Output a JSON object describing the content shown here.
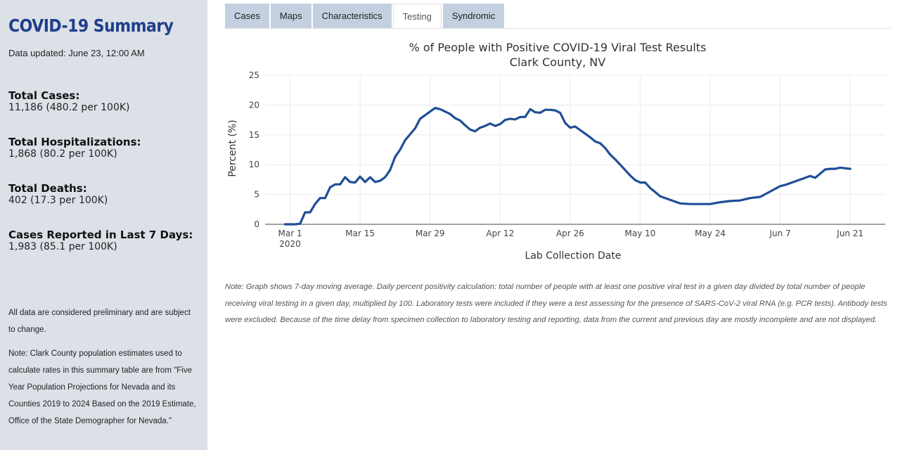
{
  "sidebar": {
    "title": "COVID-19 Summary",
    "updated": "Data updated: June 23, 12:00 AM",
    "stats": [
      {
        "label": "Total Cases:",
        "value": "11,186 (480.2 per 100K)"
      },
      {
        "label": "Total Hospitalizations:",
        "value": "1,868 (80.2 per 100K)"
      },
      {
        "label": "Total Deaths:",
        "value": "402 (17.3 per 100K)"
      },
      {
        "label": "Cases Reported in Last 7 Days:",
        "value": "1,983 (85.1 per 100K)"
      }
    ],
    "preliminary_note": "All data are considered preliminary and are subject to change.",
    "population_note": "Note: Clark County population estimates used to calculate rates in this summary table are from \"Five Year Population Projections for Nevada and its Counties 2019 to 2024 Based on the 2019 Estimate, Office of the State Demographer for Nevada.\""
  },
  "tabs": [
    {
      "label": "Cases",
      "active": false
    },
    {
      "label": "Maps",
      "active": false
    },
    {
      "label": "Characteristics",
      "active": false
    },
    {
      "label": "Testing",
      "active": true
    },
    {
      "label": "Syndromic",
      "active": false
    }
  ],
  "chart_data": {
    "type": "line",
    "title": "% of People with Positive COVID-19 Viral Test Results",
    "subtitle": "Clark County, NV",
    "xlabel": "Lab Collection Date",
    "ylabel": "Percent (%)",
    "ylim": [
      0,
      25
    ],
    "yticks": [
      0,
      5,
      10,
      15,
      20,
      25
    ],
    "xlim": [
      "2020-02-25",
      "2020-06-28"
    ],
    "xticks": [
      {
        "date": "2020-03-01",
        "label": "Mar 1",
        "sublabel": "2020"
      },
      {
        "date": "2020-03-15",
        "label": "Mar 15"
      },
      {
        "date": "2020-03-29",
        "label": "Mar 29"
      },
      {
        "date": "2020-04-12",
        "label": "Apr 12"
      },
      {
        "date": "2020-04-26",
        "label": "Apr 26"
      },
      {
        "date": "2020-05-10",
        "label": "May 10"
      },
      {
        "date": "2020-05-24",
        "label": "May 24"
      },
      {
        "date": "2020-06-07",
        "label": "Jun 7"
      },
      {
        "date": "2020-06-21",
        "label": "Jun 21"
      }
    ],
    "grid": true,
    "color": "#1f4e96",
    "series": [
      {
        "x": [
          "2020-02-29",
          "2020-03-02",
          "2020-03-03",
          "2020-03-04",
          "2020-03-05",
          "2020-03-06",
          "2020-03-07",
          "2020-03-08",
          "2020-03-09",
          "2020-03-10",
          "2020-03-11",
          "2020-03-12",
          "2020-03-13",
          "2020-03-14",
          "2020-03-15",
          "2020-03-16",
          "2020-03-17",
          "2020-03-18",
          "2020-03-19",
          "2020-03-20",
          "2020-03-21",
          "2020-03-22",
          "2020-03-23",
          "2020-03-24",
          "2020-03-25",
          "2020-03-26",
          "2020-03-27",
          "2020-03-28",
          "2020-03-29",
          "2020-03-30",
          "2020-03-31",
          "2020-04-01",
          "2020-04-02",
          "2020-04-03",
          "2020-04-04",
          "2020-04-05",
          "2020-04-06",
          "2020-04-07",
          "2020-04-08",
          "2020-04-09",
          "2020-04-10",
          "2020-04-11",
          "2020-04-12",
          "2020-04-13",
          "2020-04-14",
          "2020-04-15",
          "2020-04-16",
          "2020-04-17",
          "2020-04-18",
          "2020-04-19",
          "2020-04-20",
          "2020-04-21",
          "2020-04-22",
          "2020-04-23",
          "2020-04-24",
          "2020-04-25",
          "2020-04-26",
          "2020-04-27",
          "2020-04-28",
          "2020-04-29",
          "2020-04-30",
          "2020-05-01",
          "2020-05-02",
          "2020-05-03",
          "2020-05-04",
          "2020-05-05",
          "2020-05-06",
          "2020-05-07",
          "2020-05-08",
          "2020-05-09",
          "2020-05-10",
          "2020-05-11",
          "2020-05-12",
          "2020-05-14",
          "2020-05-16",
          "2020-05-18",
          "2020-05-20",
          "2020-05-24",
          "2020-05-26",
          "2020-05-28",
          "2020-05-30",
          "2020-06-01",
          "2020-06-03",
          "2020-06-05",
          "2020-06-07",
          "2020-06-08",
          "2020-06-09",
          "2020-06-11",
          "2020-06-13",
          "2020-06-14",
          "2020-06-16",
          "2020-06-17",
          "2020-06-18",
          "2020-06-19",
          "2020-06-20",
          "2020-06-21"
        ],
        "y": [
          0.0,
          0.0,
          0.1,
          2.0,
          2.0,
          3.4,
          4.4,
          4.4,
          6.2,
          6.7,
          6.7,
          7.9,
          7.1,
          7.0,
          8.0,
          7.1,
          7.9,
          7.1,
          7.3,
          7.9,
          9.1,
          11.3,
          12.5,
          14.1,
          15.1,
          16.1,
          17.7,
          18.3,
          18.9,
          19.5,
          19.3,
          18.9,
          18.5,
          17.8,
          17.4,
          16.6,
          15.9,
          15.6,
          16.2,
          16.5,
          16.9,
          16.5,
          16.8,
          17.5,
          17.7,
          17.6,
          18.0,
          18.0,
          19.3,
          18.8,
          18.7,
          19.2,
          19.2,
          19.1,
          18.7,
          17.0,
          16.2,
          16.4,
          15.8,
          15.2,
          14.6,
          13.9,
          13.6,
          12.8,
          11.7,
          10.9,
          10.0,
          9.1,
          8.2,
          7.4,
          7.0,
          7.0,
          6.1,
          4.7,
          4.1,
          3.5,
          3.4,
          3.4,
          3.7,
          3.9,
          4.0,
          4.4,
          4.6,
          5.5,
          6.4,
          6.6,
          6.9,
          7.5,
          8.1,
          7.8,
          9.2,
          9.3,
          9.3,
          9.5,
          9.4,
          9.3
        ]
      }
    ]
  },
  "page_note": "Note: Graph shows 7-day moving average. Daily percent positivity calculation: total number of people with at least one positive viral test in a given day divided by total number of people receiving viral testing in a given day, multiplied by 100. Laboratory tests were included if they were a test assessing for the presence of SARS-CoV-2 viral RNA (e.g. PCR tests). Antibody tests were excluded. Because of the time delay from specimen collection to laboratory testing and reporting, data from the current and previous day are mostly incomplete and are not displayed."
}
